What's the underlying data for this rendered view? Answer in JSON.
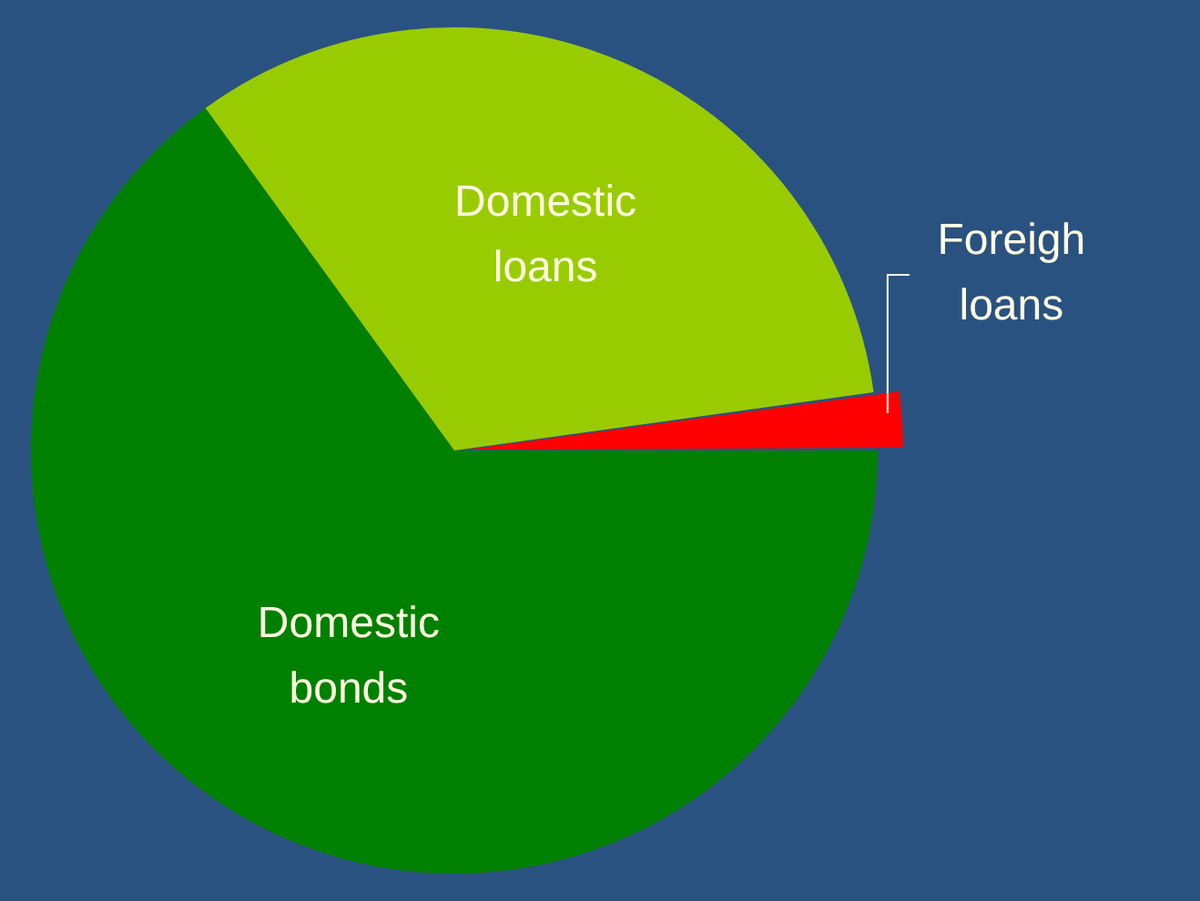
{
  "chart_data": {
    "type": "pie",
    "categories": [
      "Domestic bonds",
      "Domestic loans",
      "Foreigh loans"
    ],
    "values": [
      65,
      32.8,
      2.2
    ],
    "colors": [
      "#008000",
      "#99cc00",
      "#ff0000"
    ],
    "legend": false
  }
}
